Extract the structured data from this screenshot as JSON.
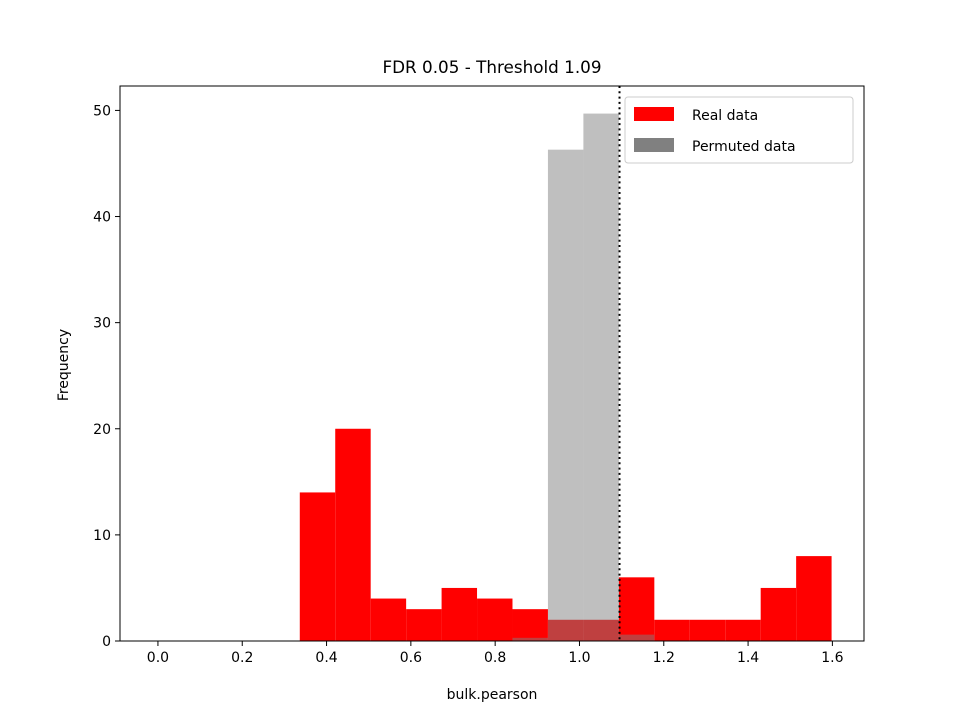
{
  "chart_data": {
    "type": "bar",
    "title": "FDR 0.05 - Threshold 1.09",
    "xlabel": "bulk.pearson",
    "ylabel": "Frequency",
    "xlim": [
      -0.09,
      1.675
    ],
    "ylim": [
      0,
      52.3
    ],
    "xticks": [
      0.0,
      0.2,
      0.4,
      0.6,
      0.8,
      1.0,
      1.2,
      1.4,
      1.6
    ],
    "xtick_labels": [
      "0.0",
      "0.2",
      "0.4",
      "0.6",
      "0.8",
      "1.0",
      "1.2",
      "1.4",
      "1.6"
    ],
    "yticks": [
      0,
      10,
      20,
      30,
      40,
      50
    ],
    "ytick_labels": [
      "0",
      "10",
      "20",
      "30",
      "40",
      "50"
    ],
    "threshold": 1.095,
    "legend_position": "top-right",
    "grid": false,
    "series": [
      {
        "name": "Real data",
        "color": "#ff0000",
        "bins": [
          {
            "x0": 0.3365,
            "x1": 0.4206,
            "value": 14
          },
          {
            "x0": 0.4206,
            "x1": 0.5047,
            "value": 20
          },
          {
            "x0": 0.5047,
            "x1": 0.5888,
            "value": 4
          },
          {
            "x0": 0.5888,
            "x1": 0.6729,
            "value": 3
          },
          {
            "x0": 0.6729,
            "x1": 0.757,
            "value": 5
          },
          {
            "x0": 0.757,
            "x1": 0.8411,
            "value": 4
          },
          {
            "x0": 0.8411,
            "x1": 0.9252,
            "value": 3
          },
          {
            "x0": 0.9252,
            "x1": 1.0093,
            "value": 2
          },
          {
            "x0": 1.0093,
            "x1": 1.0935,
            "value": 2
          },
          {
            "x0": 1.0935,
            "x1": 1.1776,
            "value": 6
          },
          {
            "x0": 1.1776,
            "x1": 1.2617,
            "value": 2
          },
          {
            "x0": 1.2617,
            "x1": 1.3458,
            "value": 2
          },
          {
            "x0": 1.3458,
            "x1": 1.4299,
            "value": 2
          },
          {
            "x0": 1.4299,
            "x1": 1.514,
            "value": 5
          },
          {
            "x0": 1.514,
            "x1": 1.5981,
            "value": 8
          }
        ]
      },
      {
        "name": "Permuted data",
        "color": "#808080",
        "alpha": 0.5,
        "bins": [
          {
            "x0": 0.8411,
            "x1": 0.9252,
            "value": 0.3
          },
          {
            "x0": 0.9252,
            "x1": 1.0093,
            "value": 46.3
          },
          {
            "x0": 1.0093,
            "x1": 1.0935,
            "value": 49.7
          },
          {
            "x0": 1.0935,
            "x1": 1.1776,
            "value": 0.6
          }
        ]
      }
    ]
  }
}
